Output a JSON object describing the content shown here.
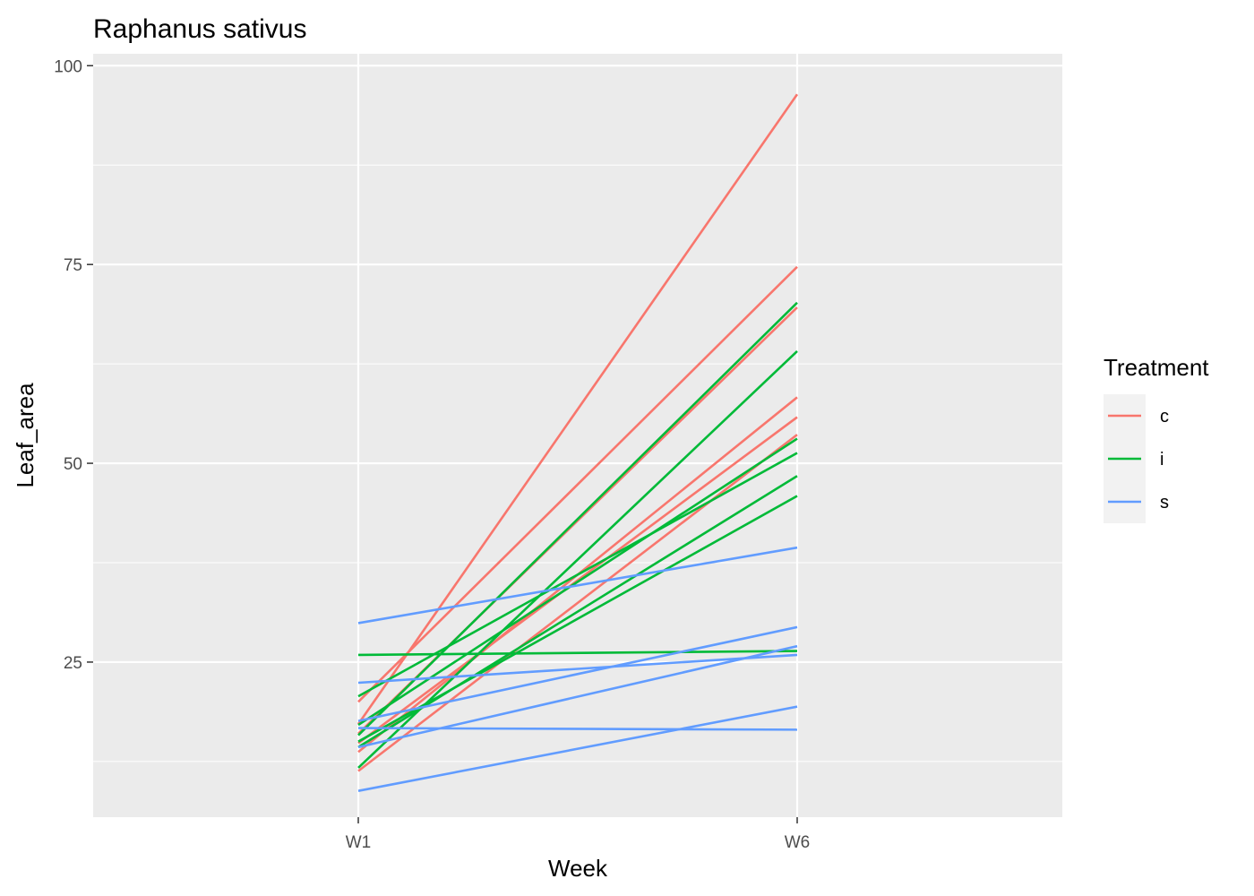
{
  "chart_data": {
    "type": "line",
    "title": "Raphanus sativus",
    "xlabel": "Week",
    "ylabel": "Leaf_area",
    "categories": [
      "W1",
      "W6"
    ],
    "ylim": [
      5.5,
      101.5
    ],
    "y_ticks": [
      25,
      50,
      75,
      100
    ],
    "grid": true,
    "legend": {
      "title": "Treatment",
      "position": "right",
      "items": [
        {
          "label": "c",
          "color": "#f8766d"
        },
        {
          "label": "i",
          "color": "#00ba38"
        },
        {
          "label": "s",
          "color": "#619cff"
        }
      ]
    },
    "series": [
      {
        "group": "c",
        "values": [
          17.2,
          96.4
        ]
      },
      {
        "group": "c",
        "values": [
          20.0,
          74.7
        ]
      },
      {
        "group": "c",
        "values": [
          16.0,
          69.6
        ]
      },
      {
        "group": "c",
        "values": [
          13.7,
          58.3
        ]
      },
      {
        "group": "c",
        "values": [
          14.8,
          55.8
        ]
      },
      {
        "group": "c",
        "values": [
          11.3,
          53.6
        ]
      },
      {
        "group": "i",
        "values": [
          15.8,
          70.2
        ]
      },
      {
        "group": "i",
        "values": [
          11.7,
          64.1
        ]
      },
      {
        "group": "i",
        "values": [
          17.1,
          53.1
        ]
      },
      {
        "group": "i",
        "values": [
          20.7,
          51.3
        ]
      },
      {
        "group": "i",
        "values": [
          14.3,
          48.4
        ]
      },
      {
        "group": "i",
        "values": [
          15.0,
          45.9
        ]
      },
      {
        "group": "i",
        "values": [
          25.9,
          26.4
        ]
      },
      {
        "group": "s",
        "values": [
          29.9,
          39.4
        ]
      },
      {
        "group": "s",
        "values": [
          22.4,
          25.9
        ]
      },
      {
        "group": "s",
        "values": [
          17.6,
          29.4
        ]
      },
      {
        "group": "s",
        "values": [
          14.3,
          27.0
        ]
      },
      {
        "group": "s",
        "values": [
          16.7,
          16.5
        ]
      },
      {
        "group": "s",
        "values": [
          8.8,
          19.4
        ]
      }
    ]
  }
}
